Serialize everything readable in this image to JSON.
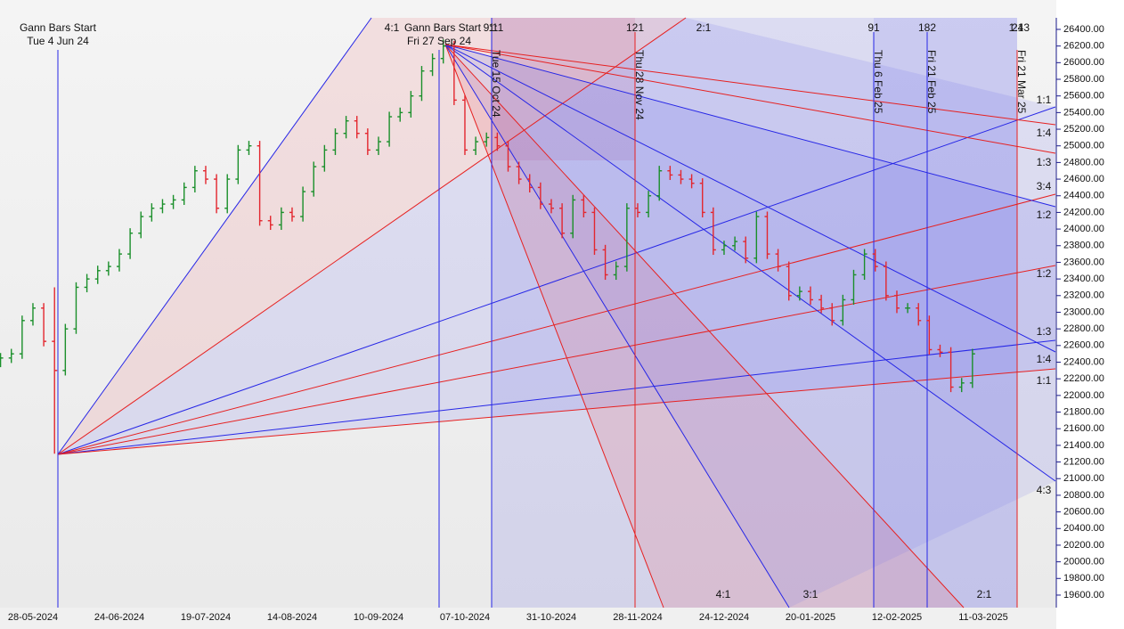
{
  "chart_data": {
    "type": "ohlc",
    "categories": [
      null,
      null,
      null,
      "28-05-2024",
      null,
      null,
      null,
      null,
      null,
      null,
      null,
      "24-06-2024",
      null,
      null,
      null,
      null,
      null,
      null,
      null,
      "19-07-2024",
      null,
      null,
      null,
      null,
      null,
      null,
      null,
      "14-08-2024",
      null,
      null,
      null,
      null,
      null,
      null,
      null,
      "10-09-2024",
      null,
      null,
      null,
      null,
      null,
      null,
      null,
      "07-10-2024",
      null,
      null,
      null,
      null,
      null,
      null,
      null,
      "31-10-2024",
      null,
      null,
      null,
      null,
      null,
      null,
      null,
      "28-11-2024",
      null,
      null,
      null,
      null,
      null,
      null,
      null,
      "24-12-2024",
      null,
      null,
      null,
      null,
      null,
      null,
      null,
      "20-01-2025",
      null,
      null,
      null,
      null,
      null,
      null,
      null,
      "12-02-2025",
      null,
      null,
      null,
      null,
      null,
      null,
      null,
      "11-03-2025",
      null,
      null,
      null,
      null,
      null,
      null
    ],
    "open": [
      22400,
      22450,
      22500,
      22900,
      23050,
      22650,
      22300,
      22800,
      23300,
      23400,
      23500,
      23550,
      23700,
      23950,
      24150,
      24250,
      24300,
      24350,
      24500,
      24700,
      24600,
      24250,
      24600,
      24950,
      25000,
      24100,
      24050,
      24200,
      24150,
      24450,
      24750,
      24950,
      25150,
      25300,
      25150,
      24950,
      25050,
      25350,
      25400,
      25600,
      25900,
      26050,
      26200,
      25550,
      24950,
      25050,
      25100,
      25000,
      24750,
      24600,
      24500,
      24300,
      24250,
      23950,
      24350,
      24200,
      23750,
      23450,
      23550,
      24250,
      24200,
      24400,
      24700,
      24650,
      24600,
      24550,
      24200,
      23750,
      23800,
      23850,
      23650,
      24150,
      23700,
      23550,
      23200,
      23250,
      23150,
      23050,
      22900,
      23150,
      23450,
      23700,
      23550,
      23200,
      23050,
      23050,
      22900,
      22550,
      22520,
      22100,
      22150,
      null,
      null,
      null,
      null,
      null,
      null,
      null
    ],
    "high": [
      22510,
      22560,
      22960,
      23110,
      23110,
      23300,
      22860,
      23360,
      23460,
      23560,
      23610,
      23760,
      24010,
      24210,
      24310,
      24360,
      24410,
      24560,
      24760,
      24760,
      24660,
      24660,
      25010,
      25060,
      25060,
      24160,
      24260,
      24260,
      24510,
      24810,
      25010,
      25210,
      25360,
      25360,
      25210,
      25110,
      25410,
      25460,
      25660,
      25960,
      26110,
      26280,
      26260,
      25610,
      25110,
      25160,
      25160,
      25060,
      24810,
      24660,
      24560,
      24360,
      24310,
      24410,
      24410,
      24260,
      23810,
      23610,
      24310,
      24310,
      24460,
      24760,
      24760,
      24710,
      24660,
      24610,
      24260,
      23860,
      23910,
      23910,
      24210,
      24210,
      23760,
      23610,
      23310,
      23310,
      23210,
      23110,
      23210,
      23510,
      23760,
      23760,
      23610,
      23260,
      23110,
      23110,
      22960,
      22610,
      22580,
      22210,
      22560,
      null,
      null,
      null,
      null,
      null,
      null,
      null
    ],
    "low": [
      22340,
      22390,
      22440,
      22840,
      22590,
      21300,
      22240,
      22740,
      23240,
      23340,
      23440,
      23490,
      23640,
      23890,
      24090,
      24190,
      24240,
      24290,
      24440,
      24540,
      24190,
      24190,
      24540,
      24890,
      24040,
      23990,
      23990,
      24090,
      24090,
      24390,
      24690,
      24890,
      25090,
      25090,
      24890,
      24890,
      24990,
      25290,
      25340,
      25540,
      25840,
      25990,
      25490,
      24890,
      24890,
      24990,
      24940,
      24690,
      24540,
      24440,
      24240,
      24190,
      23890,
      23890,
      24140,
      23690,
      23390,
      23390,
      23490,
      24140,
      24140,
      24340,
      24590,
      24540,
      24490,
      24140,
      23690,
      23690,
      23740,
      23590,
      23590,
      23640,
      23490,
      23140,
      23140,
      23090,
      22990,
      22840,
      22840,
      23090,
      23390,
      23490,
      23140,
      22990,
      22990,
      22840,
      22490,
      22460,
      22040,
      22040,
      22090,
      null,
      null,
      null,
      null,
      null,
      null,
      null
    ],
    "close": [
      22450,
      22500,
      22900,
      23050,
      22650,
      22300,
      22800,
      23300,
      23400,
      23500,
      23550,
      23700,
      23950,
      24150,
      24250,
      24300,
      24350,
      24500,
      24700,
      24600,
      24250,
      24600,
      24950,
      25000,
      24100,
      24050,
      24200,
      24150,
      24450,
      24750,
      24950,
      25150,
      25300,
      25150,
      24950,
      25050,
      25350,
      25400,
      25600,
      25900,
      26050,
      26200,
      25550,
      24950,
      25050,
      25100,
      25000,
      24750,
      24600,
      24500,
      24300,
      24250,
      23950,
      24350,
      24200,
      23750,
      23450,
      23550,
      24250,
      24200,
      24400,
      24700,
      24650,
      24600,
      24550,
      24200,
      23750,
      23800,
      23850,
      23650,
      24150,
      23700,
      23550,
      23200,
      23250,
      23150,
      23050,
      22900,
      23150,
      23450,
      23700,
      23550,
      23200,
      23050,
      23050,
      22900,
      22550,
      22520,
      22100,
      22150,
      22500,
      null,
      null,
      null,
      null,
      null,
      null,
      null
    ],
    "up_color": "#1a8f2a",
    "down_color": "#e3262e",
    "ylim": [
      19471,
      26539
    ],
    "yticks": [
      {
        "value": 19600,
        "label": "19600.00"
      },
      {
        "value": 19800,
        "label": "19800.00"
      },
      {
        "value": 20000,
        "label": "20000.00"
      },
      {
        "value": 20200,
        "label": "20200.00"
      },
      {
        "value": 20400,
        "label": "20400.00"
      },
      {
        "value": 20600,
        "label": "20600.00"
      },
      {
        "value": 20800,
        "label": "20800.00"
      },
      {
        "value": 21000,
        "label": "21000.00"
      },
      {
        "value": 21200,
        "label": "21200.00"
      },
      {
        "value": 21400,
        "label": "21400.00"
      },
      {
        "value": 21600,
        "label": "21600.00"
      },
      {
        "value": 21800,
        "label": "21800.00"
      },
      {
        "value": 22000,
        "label": "22000.00"
      },
      {
        "value": 22200,
        "label": "22200.00"
      },
      {
        "value": 22400,
        "label": "22400.00"
      },
      {
        "value": 22600,
        "label": "22600.00"
      },
      {
        "value": 22800,
        "label": "22800.00"
      },
      {
        "value": 23000,
        "label": "23000.00"
      },
      {
        "value": 23200,
        "label": "23200.00"
      },
      {
        "value": 23400,
        "label": "23400.00"
      },
      {
        "value": 23600,
        "label": "23600.00"
      },
      {
        "value": 23800,
        "label": "23800.00"
      },
      {
        "value": 24000,
        "label": "24000.00"
      },
      {
        "value": 24200,
        "label": "24200.00"
      },
      {
        "value": 24400,
        "label": "24400.00"
      },
      {
        "value": 24600,
        "label": "24600.00"
      },
      {
        "value": 24800,
        "label": "24800.00"
      },
      {
        "value": 25000,
        "label": "25000.00"
      },
      {
        "value": 25200,
        "label": "25200.00"
      },
      {
        "value": 25400,
        "label": "25400.00"
      },
      {
        "value": 25600,
        "label": "25600.00"
      },
      {
        "value": 25800,
        "label": "25800.00"
      },
      {
        "value": 26000,
        "label": "26000.00"
      },
      {
        "value": 26200,
        "label": "26200.00"
      },
      {
        "value": 26400,
        "label": "26400.00"
      }
    ],
    "gann_starts": [
      {
        "title": "Gann Bars Start",
        "date": "Tue 4 Jun 24"
      },
      {
        "title": "Gann Bars Start",
        "date": "Fri 27 Sep 24"
      }
    ],
    "time_lines": [
      "Tue 15 Oct 24",
      "Thu 28 Nov 24",
      "Thu 6 Feb 25",
      "Fri 21 Feb 25",
      "Fri 21 Mar 25"
    ],
    "top_labels": [
      "4:1",
      "9:1",
      "1:1",
      "121",
      "2:1",
      "91",
      "182",
      "1:1",
      "243"
    ],
    "fan_ratios_right": [
      "1:1",
      "1:4",
      "1:3",
      "3:4",
      "1:2",
      "1:2",
      "1:3",
      "1:4",
      "1:1",
      "4:3"
    ],
    "fan_ratios_bottom": [
      "4:1",
      "3:1",
      "2:1"
    ]
  }
}
